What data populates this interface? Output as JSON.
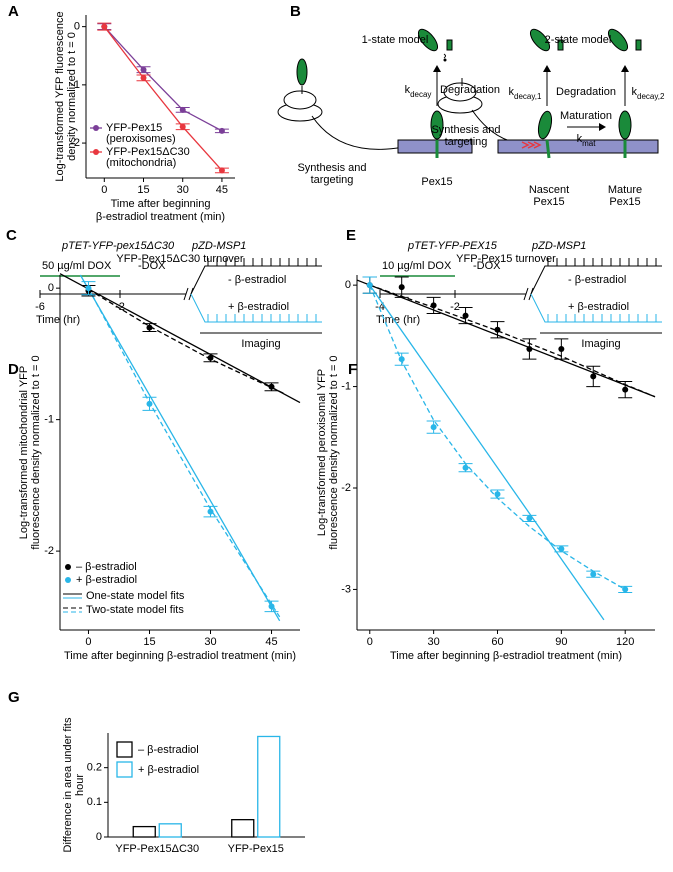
{
  "chart_data": [
    {
      "type": "line",
      "panel": "A",
      "xlabel": [
        "Time after beginning",
        "β-estradiol treatment (min)"
      ],
      "ylabel": [
        "Log-transformed YFP fluorescence",
        "density normalized to t = 0"
      ],
      "x": [
        0,
        15,
        30,
        45
      ],
      "xlim": [
        -7,
        50
      ],
      "xticks": [
        0,
        15,
        30,
        45
      ],
      "ylim": [
        -2.6,
        0.2
      ],
      "yticks": [
        -2,
        -1,
        0
      ],
      "series": [
        {
          "name": "YFP-Pex15",
          "note": "(peroxisomes)",
          "color": "#7b3f98",
          "values": [
            0,
            -0.74,
            -1.43,
            -1.79
          ],
          "errors": [
            0.05,
            0.05,
            0.04,
            0.03
          ]
        },
        {
          "name": "YFP-Pex15ΔC30",
          "note": "(mitochondria)",
          "color": "#e8373f",
          "values": [
            0,
            -0.88,
            -1.72,
            -2.47
          ],
          "errors": [
            0.06,
            0.05,
            0.05,
            0.04
          ]
        }
      ]
    },
    {
      "type": "scatter",
      "panel": "D",
      "title": "YFP-Pex15ΔC30 turnover",
      "xlabel": "Time after beginning β-estradiol treatment (min)",
      "ylabel": [
        "Log-transformed mitochondrial YFP",
        "fluorescence density normalized to t = 0"
      ],
      "xlim": [
        -7,
        52
      ],
      "xticks": [
        0,
        15,
        30,
        45
      ],
      "ylim": [
        -2.6,
        0.1
      ],
      "yticks": [
        -2,
        -1,
        0
      ],
      "series": [
        {
          "name": "– β-estradiol",
          "color": "#000000",
          "x": [
            0,
            15,
            30,
            45
          ],
          "values": [
            -0.02,
            -0.3,
            -0.53,
            -0.75
          ],
          "errors": [
            0.04,
            0.03,
            0.03,
            0.03
          ]
        },
        {
          "name": "+ β-estradiol",
          "color": "#29b6e8",
          "x": [
            0,
            15,
            30,
            45
          ],
          "values": [
            0,
            -0.88,
            -1.7,
            -2.42
          ],
          "errors": [
            0.05,
            0.05,
            0.04,
            0.04
          ]
        }
      ],
      "fits": [
        {
          "name": "One-state model fits",
          "dash": false,
          "lines": [
            {
              "color": "#000000",
              "x": [
                -7,
                52
              ],
              "values": [
                0.11,
                -0.87
              ]
            },
            {
              "color": "#29b6e8",
              "x": [
                -2,
                47
              ],
              "values": [
                0.1,
                -2.53
              ]
            }
          ]
        },
        {
          "name": "Two-state model fits",
          "dash": true,
          "lines": [
            {
              "color": "#000000",
              "x": [
                0,
                15,
                30,
                48
              ],
              "values": [
                -0.01,
                -0.29,
                -0.54,
                -0.8
              ]
            },
            {
              "color": "#29b6e8",
              "x": [
                0,
                15,
                30,
                47
              ],
              "values": [
                0,
                -0.87,
                -1.68,
                -2.5
              ]
            }
          ]
        }
      ]
    },
    {
      "type": "scatter",
      "panel": "F",
      "title": "YFP-Pex15 turnover",
      "xlabel": "Time after beginning β-estradiol treatment (min)",
      "ylabel": [
        "Log-transformed peroxisomal YFP",
        "fluorescence density normalized to t = 0"
      ],
      "xlim": [
        -6,
        134
      ],
      "xticks": [
        0,
        30,
        60,
        90,
        120
      ],
      "ylim": [
        -3.4,
        0.1
      ],
      "yticks": [
        -3,
        -2,
        -1,
        0
      ],
      "series": [
        {
          "name": "– β-estradiol",
          "color": "#000000",
          "x": [
            0,
            15,
            30,
            45,
            60,
            75,
            90,
            105,
            120
          ],
          "values": [
            0,
            -0.02,
            -0.2,
            -0.3,
            -0.44,
            -0.63,
            -0.63,
            -0.9,
            -1.03
          ],
          "errors": [
            0.08,
            0.1,
            0.08,
            0.08,
            0.08,
            0.1,
            0.1,
            0.1,
            0.08
          ]
        },
        {
          "name": "+ β-estradiol",
          "color": "#29b6e8",
          "x": [
            0,
            15,
            30,
            45,
            60,
            75,
            90,
            105,
            120
          ],
          "values": [
            0,
            -0.73,
            -1.4,
            -1.8,
            -2.06,
            -2.3,
            -2.6,
            -2.85,
            -3.0
          ],
          "errors": [
            0.08,
            0.06,
            0.06,
            0.04,
            0.04,
            0.03,
            0.03,
            0.03,
            0.03
          ]
        }
      ],
      "fits": [
        {
          "dash": false,
          "lines": [
            {
              "color": "#000000",
              "x": [
                -6,
                134
              ],
              "values": [
                0.05,
                -1.1
              ]
            },
            {
              "color": "#29b6e8",
              "x": [
                0,
                110
              ],
              "values": [
                0,
                -3.3
              ]
            }
          ]
        },
        {
          "dash": true,
          "lines": [
            {
              "color": "#000000",
              "x": [
                0,
                30,
                60,
                90,
                120,
                134
              ],
              "values": [
                0,
                -0.22,
                -0.45,
                -0.7,
                -0.98,
                -1.1
              ]
            },
            {
              "color": "#29b6e8",
              "x": [
                0,
                15,
                30,
                45,
                60,
                75,
                90,
                105,
                120
              ],
              "values": [
                0,
                -0.75,
                -1.33,
                -1.76,
                -2.1,
                -2.38,
                -2.62,
                -2.82,
                -3.0
              ]
            }
          ]
        }
      ]
    },
    {
      "type": "bar",
      "panel": "G",
      "ylabel": [
        "Difference in area under fits",
        "hour"
      ],
      "categories": [
        "YFP-Pex15ΔC30",
        "YFP-Pex15"
      ],
      "ylim": [
        0,
        0.3
      ],
      "yticks": [
        0,
        0.1,
        0.2
      ],
      "series": [
        {
          "name": "– β-estradiol",
          "color": "#000000",
          "values": [
            0.03,
            0.05
          ]
        },
        {
          "name": "+ β-estradiol",
          "color": "#29b6e8",
          "values": [
            0.038,
            0.29
          ]
        }
      ]
    }
  ],
  "panel_B": {
    "panel": "B",
    "one_state": {
      "title": "1-state model",
      "k": {
        "base": "k",
        "sub": "decay"
      },
      "degradation": "Degradation",
      "synthesis": [
        "Synthesis and",
        "targeting"
      ],
      "protein": "Pex15"
    },
    "two_state": {
      "title": "2-state model",
      "k1": {
        "base": "k",
        "sub": "decay,1"
      },
      "k2": {
        "base": "k",
        "sub": "decay,2"
      },
      "degradation": "Degradation",
      "synthesis": [
        "Synthesis and",
        "targeting"
      ],
      "maturation": "Maturation",
      "kmat": {
        "base": "k",
        "sub": "mat"
      },
      "nascent": [
        "Nascent",
        "Pex15"
      ],
      "mature": [
        "Mature",
        "Pex15"
      ]
    }
  },
  "panel_C": {
    "panel": "C",
    "construct1": "pTET-YFP-pex15ΔC30",
    "construct2": "pZD-MSP1",
    "dox": "50 µg/ml DOX",
    "nodox": "-DOX",
    "minus": "- β-estradiol",
    "plus": "+ β-estradiol",
    "times": [
      "-6",
      "-2"
    ],
    "time_label": "Time (hr)",
    "imaging": "Imaging"
  },
  "panel_E": {
    "panel": "E",
    "construct1": "pTET-YFP-PEX15",
    "construct2": "pZD-MSP1",
    "dox": "10 µg/ml DOX",
    "nodox": "-DOX",
    "minus": "- β-estradiol",
    "plus": "+ β-estradiol",
    "times": [
      "-4",
      "-2"
    ],
    "time_label": "Time (hr)",
    "imaging": "Imaging"
  }
}
